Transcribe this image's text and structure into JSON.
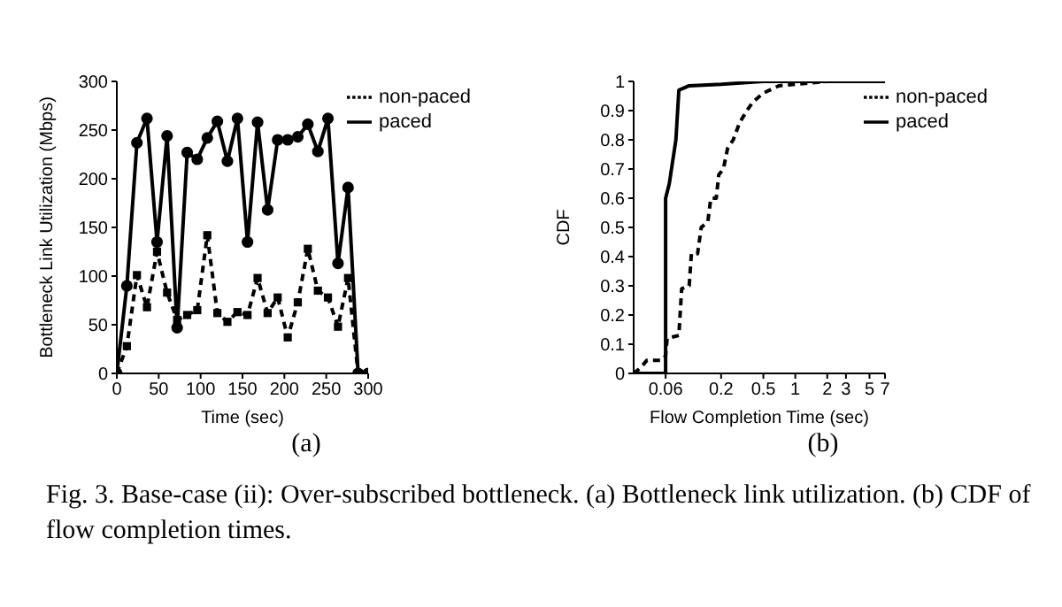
{
  "chart_data": [
    {
      "type": "line",
      "xlabel": "Time (sec)",
      "ylabel": "Bottleneck Link Utilization (Mbps)",
      "xlim": [
        0,
        300
      ],
      "xticks": [
        0,
        50,
        100,
        150,
        200,
        250,
        300
      ],
      "ylim": [
        0,
        300
      ],
      "yticks": [
        0,
        50,
        100,
        150,
        200,
        250,
        300
      ],
      "grid": false,
      "legend": "top right",
      "annotations": [
        "(a)"
      ],
      "x": [
        0,
        12,
        24,
        36,
        48,
        60,
        72,
        84,
        96,
        108,
        120,
        132,
        144,
        156,
        168,
        180,
        192,
        204,
        216,
        228,
        240,
        252,
        264,
        276,
        288,
        300
      ],
      "series": [
        {
          "name": "paced",
          "color": "#000000",
          "marker": "circle",
          "line_style": "solid",
          "values": [
            0,
            90,
            237,
            262,
            135,
            244,
            47,
            227,
            220,
            242,
            259,
            218,
            262,
            135,
            258,
            168,
            240,
            240,
            243,
            256,
            228,
            262,
            113,
            191,
            0,
            0
          ]
        },
        {
          "name": "non-paced",
          "color": "#000000",
          "marker": "square",
          "line_style": "dashed",
          "values": [
            0,
            28,
            101,
            68,
            125,
            83,
            55,
            60,
            65,
            142,
            62,
            53,
            63,
            60,
            98,
            62,
            78,
            37,
            73,
            128,
            85,
            78,
            48,
            98,
            0,
            0
          ]
        }
      ]
    },
    {
      "type": "line",
      "xlabel": "Flow Completion Time (sec)",
      "ylabel": "CDF",
      "log": "x",
      "xlim": [
        0.03,
        7
      ],
      "xticks": [
        0.06,
        0.2,
        0.5,
        1,
        2,
        3,
        5,
        7
      ],
      "ylim": [
        0,
        1
      ],
      "yticks": [
        0,
        0.1,
        0.2,
        0.3,
        0.4,
        0.5,
        0.6,
        0.7,
        0.8,
        0.9,
        1
      ],
      "grid": false,
      "legend": "top right",
      "marker": "none",
      "annotations": [
        "(b)",
        "Fig. 3.    Base-case (ii): Over-subscribed bottleneck. (a) Bottleneck link utilization. (b) CDF of flow completion times."
      ],
      "series": [
        {
          "name": "paced",
          "color": "#000000",
          "line_style": "solid",
          "x": [
            0.03,
            0.06,
            0.06,
            0.065,
            0.075,
            0.08,
            0.1,
            0.2,
            0.5,
            7
          ],
          "values": [
            0,
            0,
            0.6,
            0.65,
            0.8,
            0.97,
            0.985,
            0.99,
            1,
            1
          ]
        },
        {
          "name": "non-paced",
          "color": "#000000",
          "line_style": "dashed",
          "x": [
            0.03,
            0.035,
            0.04,
            0.055,
            0.06,
            0.062,
            0.08,
            0.085,
            0.1,
            0.105,
            0.12,
            0.13,
            0.15,
            0.16,
            0.18,
            0.19,
            0.21,
            0.23,
            0.26,
            0.3,
            0.35,
            0.4,
            0.5,
            0.7,
            1,
            2,
            7
          ],
          "values": [
            0,
            0.02,
            0.045,
            0.045,
            0.06,
            0.12,
            0.13,
            0.29,
            0.3,
            0.41,
            0.41,
            0.5,
            0.52,
            0.6,
            0.6,
            0.68,
            0.7,
            0.77,
            0.8,
            0.86,
            0.9,
            0.93,
            0.96,
            0.985,
            0.99,
            1,
            1
          ]
        }
      ]
    }
  ]
}
